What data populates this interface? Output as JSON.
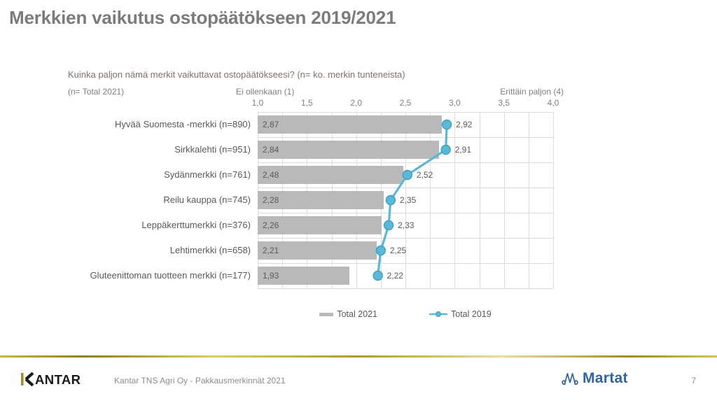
{
  "page": {
    "title": "Merkkien vaikutus ostopäätökseen 2019/2021"
  },
  "chart_data": {
    "type": "bar",
    "orientation": "horizontal",
    "question": "Kuinka paljon nämä merkit vaikuttavat ostopäätökseesi? (n= ko. merkin tunteneista)",
    "base_label": "(n= Total 2021)",
    "scale_min_label": "Ei ollenkaan (1)",
    "scale_max_label": "Erittäin paljon (4)",
    "categories": [
      "Hyvää Suomesta -merkki (n=890)",
      "Sirkkalehti (n=951)",
      "Sydänmerkki (n=761)",
      "Reilu kauppa (n=745)",
      "Leppäkerttumerkki (n=376)",
      "Lehtimerkki (n=658)",
      "Gluteenittoman tuotteen merkki (n=177)"
    ],
    "series": [
      {
        "name": "Total 2021",
        "type": "bar",
        "color": "#b9b9b9",
        "values": [
          2.87,
          2.84,
          2.48,
          2.28,
          2.26,
          2.21,
          1.93
        ]
      },
      {
        "name": "Total 2019",
        "type": "line",
        "color": "#5bb8d7",
        "marker_stroke": "#3aa0c4",
        "values": [
          2.92,
          2.91,
          2.52,
          2.35,
          2.33,
          2.25,
          2.22
        ]
      }
    ],
    "xlim": [
      1.0,
      4.0
    ],
    "xticks": [
      "1,0",
      "1,5",
      "2,0",
      "2,5",
      "3,0",
      "3,5",
      "4,0"
    ],
    "minor_grid_step": 0.25,
    "grid": true,
    "legend_position": "bottom-center",
    "decimal_separator": ","
  },
  "footer": {
    "kantar_logo": "KANTAR",
    "source": "Kantar TNS Agri Oy - Pakkausmerkinnät 2021",
    "martat_logo": "Martat",
    "page_number": "7"
  },
  "colors": {
    "title_gray": "#7b7b7b",
    "bar_gray": "#b9b9b9",
    "line_blue": "#5bb8d7",
    "grid_gray": "#dcdcdc",
    "text_dark_gray": "#595959",
    "axis_text_gray": "#7f7f7f",
    "gold": "#ac9838",
    "kantar_gold": "#a98e2f",
    "martat_blue": "#2d64a8"
  }
}
